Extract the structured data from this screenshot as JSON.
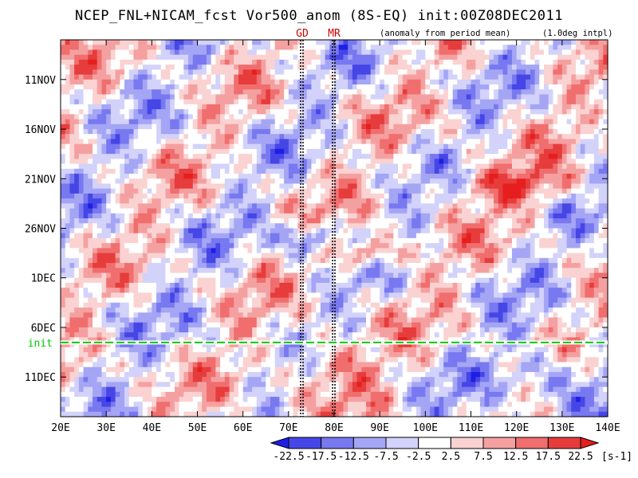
{
  "chart_data": {
    "type": "heatmap",
    "title": "NCEP_FNL+NICAM_fcst Vor500_anom (8S-EQ) init:00Z08DEC2011",
    "subtitle_left": "(anomaly from period mean)",
    "subtitle_right": "(1.0deg intpl)",
    "x_ticks": [
      "20E",
      "30E",
      "40E",
      "50E",
      "60E",
      "70E",
      "80E",
      "90E",
      "100E",
      "110E",
      "120E",
      "130E",
      "140E"
    ],
    "x_tick_values": [
      20,
      30,
      40,
      50,
      60,
      70,
      80,
      90,
      100,
      110,
      120,
      130,
      140
    ],
    "xlim": [
      20,
      140
    ],
    "y_ticks": [
      "11NOV",
      "16NOV",
      "21NOV",
      "26NOV",
      "1DEC",
      "6DEC",
      "11DEC"
    ],
    "y_tick_values": [
      "2011-11-11",
      "2011-11-16",
      "2011-11-21",
      "2011-11-26",
      "2011-12-01",
      "2011-12-06",
      "2011-12-11"
    ],
    "ylim": [
      "2011-11-07",
      "2011-12-15"
    ],
    "y_direction": "down",
    "vertical_lines": [
      {
        "label": "GD",
        "lon": 73,
        "color": "#cc0000"
      },
      {
        "label": "MR",
        "lon": 80,
        "color": "#cc0000"
      }
    ],
    "init_line": {
      "label": "init",
      "date": "2011-12-08",
      "color": "#00cc00"
    },
    "colorbar": {
      "levels": [
        "-22.5",
        "-17.5",
        "-12.5",
        "-7.5",
        "-2.5",
        "2.5",
        "7.5",
        "12.5",
        "17.5",
        "22.5"
      ],
      "units": "[s-1]",
      "colors": [
        "#1e1ee6",
        "#4646e6",
        "#7878f0",
        "#a5a5f5",
        "#d2d2fa",
        "#ffffff",
        "#fad2d2",
        "#f5a0a0",
        "#f06e6e",
        "#e63c3c",
        "#e61e1e"
      ]
    }
  }
}
